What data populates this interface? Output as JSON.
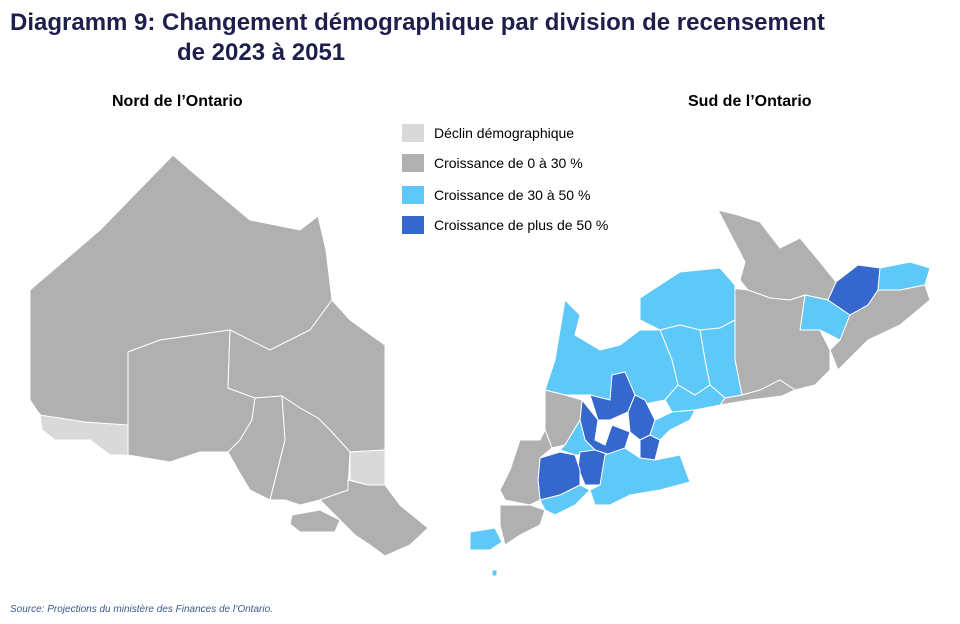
{
  "title": {
    "line1": "Diagramm 9: Changement démographique par division de recensement",
    "line2": "de 2023 à 2051"
  },
  "maps": {
    "north": {
      "label": "Nord de l’Ontario"
    },
    "south": {
      "label": "Sud de l’Ontario"
    }
  },
  "legend": [
    {
      "label": "Déclin démographique",
      "color": "#d9d9d9"
    },
    {
      "label": "Croissance de 0 à 30 %",
      "color": "#b0b0b0"
    },
    {
      "label": "Croissance de 30 à 50 %",
      "color": "#5ec8f8"
    },
    {
      "label": "Croissance de plus de 50 %",
      "color": "#3567cc"
    }
  ],
  "source": "Source: Projections du ministère des Finances de l’Ontario."
}
